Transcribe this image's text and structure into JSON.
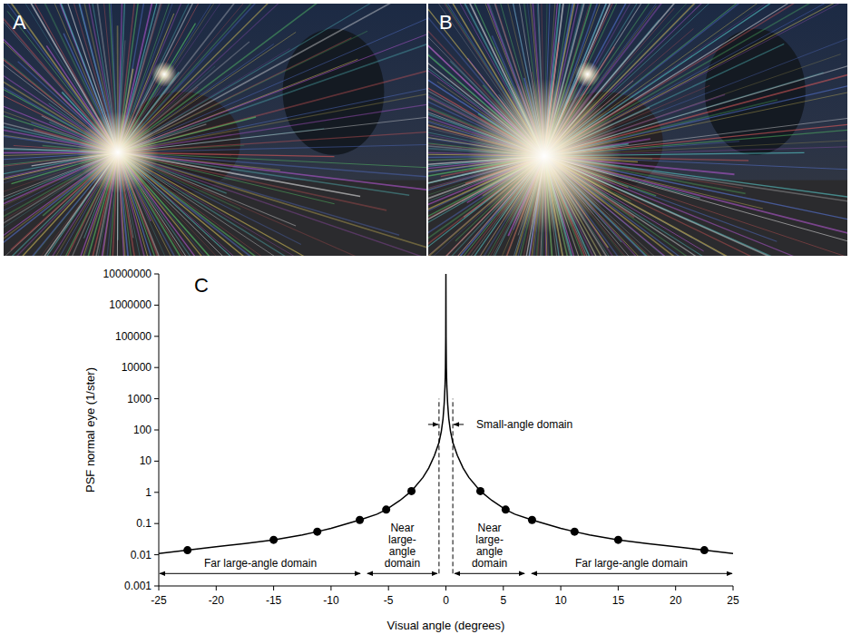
{
  "panel_labels": [
    "A",
    "B",
    "C"
  ],
  "chart_data": {
    "type": "line",
    "x_label": "Visual angle (degrees)",
    "y_label": "PSF normal eye (1/ster)",
    "log": "y",
    "grid": false,
    "xlim": [
      -25,
      25
    ],
    "ylim": [
      0.001,
      10000000
    ],
    "xticks": [
      -25,
      -20,
      -15,
      -10,
      -5,
      0,
      5,
      10,
      15,
      20,
      25
    ],
    "yticks": [
      0.001,
      0.01,
      0.1,
      1,
      10,
      100,
      1000,
      10000,
      100000,
      1000000,
      10000000
    ],
    "series": [
      {
        "type": "line",
        "color": "#000000",
        "marker": "none",
        "line_style": "solid",
        "x": [
          -25,
          -22.5,
          -20,
          -17.5,
          -15,
          -12.5,
          -11.2,
          -10,
          -7.5,
          -6,
          -5.2,
          -4,
          -3,
          -2,
          -1.5,
          -1,
          -0.6,
          -0.4,
          -0.25,
          -0.15,
          -0.08,
          -0.04,
          -0.015,
          0,
          0.015,
          0.04,
          0.08,
          0.15,
          0.25,
          0.4,
          0.6,
          1,
          1.5,
          2,
          3,
          4,
          5.2,
          6,
          7.5,
          10,
          11.2,
          12.5,
          15,
          17.5,
          20,
          22.5,
          25
        ],
        "values": [
          0.011,
          0.014,
          0.018,
          0.023,
          0.03,
          0.043,
          0.055,
          0.07,
          0.13,
          0.2,
          0.28,
          0.55,
          1.1,
          3,
          6,
          15,
          40,
          90,
          230,
          700,
          2500,
          10000,
          100000,
          10000000,
          100000,
          10000,
          2500,
          700,
          230,
          90,
          40,
          15,
          6,
          3,
          1.1,
          0.55,
          0.28,
          0.2,
          0.13,
          0.07,
          0.055,
          0.043,
          0.03,
          0.023,
          0.018,
          0.014,
          0.011
        ]
      },
      {
        "type": "scatter",
        "color": "#000000",
        "marker": "circle",
        "x": [
          -22.5,
          -15,
          -11.2,
          -7.5,
          -5.2,
          -3,
          3,
          5.2,
          7.5,
          11.2,
          15,
          22.5
        ],
        "values": [
          0.014,
          0.03,
          0.055,
          0.13,
          0.28,
          1.1,
          1.1,
          0.28,
          0.13,
          0.055,
          0.03,
          0.014
        ]
      }
    ],
    "annotations": [
      {
        "text": "Small-angle domain",
        "x_range": [
          -0.6,
          0.6
        ],
        "arrow_y": 150,
        "dash_ylim": [
          0.0025,
          1000
        ]
      },
      {
        "text": "Near large-angle domain",
        "x_range": [
          -7,
          -0.6
        ],
        "arrow_y": 0.0025
      },
      {
        "text": "Near large-angle domain",
        "x_range": [
          0.6,
          7
        ],
        "arrow_y": 0.0025
      },
      {
        "text": "Far large-angle domain",
        "x_range": [
          -25,
          -7.3
        ],
        "arrow_y": 0.0025
      },
      {
        "text": "Far large-angle domain",
        "x_range": [
          7.3,
          25
        ],
        "arrow_y": 0.0025
      }
    ]
  }
}
